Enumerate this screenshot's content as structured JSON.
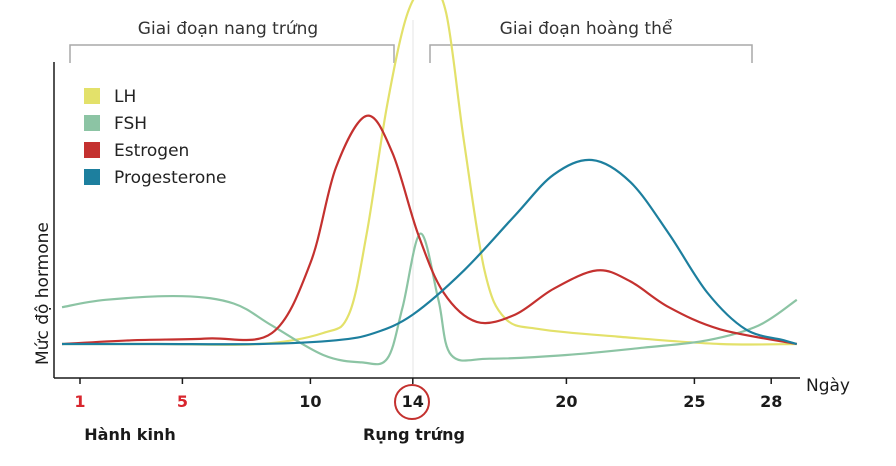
{
  "chart_data": {
    "type": "line",
    "xlabel": "Ngày",
    "ylabel": "Mức độ hormone",
    "xlim": [
      0,
      28
    ],
    "x_ticks": [
      {
        "value": 1,
        "label": "1",
        "color": "#d8262e"
      },
      {
        "value": 5,
        "label": "5",
        "color": "#d8262e"
      },
      {
        "value": 10,
        "label": "10",
        "color": "#1a1a1a"
      },
      {
        "value": 14,
        "label": "14",
        "color": "#1a1a1a",
        "circled": true
      },
      {
        "value": 20,
        "label": "20",
        "color": "#1a1a1a"
      },
      {
        "value": 25,
        "label": "25",
        "color": "#1a1a1a"
      },
      {
        "value": 28,
        "label": "28",
        "color": "#1a1a1a"
      }
    ],
    "phases": [
      {
        "label": "Giai đoạn nang trứng",
        "from_day": 0.5,
        "to_day": 13.7
      },
      {
        "label": "Giai đoạn hoàng thể",
        "from_day": 14.8,
        "to_day": 27.5
      }
    ],
    "annotations": [
      {
        "label": "Hành kinh",
        "day": 3,
        "color": "#1a1a1a"
      },
      {
        "label": "Rụng trứng",
        "day": 14,
        "color": "#1a1a1a"
      }
    ],
    "legend_position": "top-left",
    "series": [
      {
        "name": "LH",
        "color": "#e3e16a",
        "points": [
          [
            -1.5,
            0.0
          ],
          [
            4,
            0.0
          ],
          [
            8,
            0.0
          ],
          [
            10.5,
            0.03
          ],
          [
            11.5,
            0.08
          ],
          [
            12.2,
            0.3
          ],
          [
            13,
            0.65
          ],
          [
            13.8,
            0.9
          ],
          [
            14.6,
            0.97
          ],
          [
            15.3,
            0.9
          ],
          [
            16,
            0.55
          ],
          [
            16.8,
            0.2
          ],
          [
            17.6,
            0.07
          ],
          [
            19,
            0.04
          ],
          [
            22,
            0.02
          ],
          [
            26,
            0.0
          ],
          [
            29,
            0.0
          ]
        ]
      },
      {
        "name": "FSH",
        "color": "#8cc4a4",
        "points": [
          [
            -1.5,
            0.1
          ],
          [
            2,
            0.12
          ],
          [
            5,
            0.13
          ],
          [
            7,
            0.11
          ],
          [
            8.5,
            0.05
          ],
          [
            10.5,
            -0.03
          ],
          [
            12,
            -0.05
          ],
          [
            13,
            -0.04
          ],
          [
            13.6,
            0.1
          ],
          [
            14.3,
            0.3
          ],
          [
            15,
            0.12
          ],
          [
            15.5,
            -0.03
          ],
          [
            17,
            -0.04
          ],
          [
            20,
            -0.03
          ],
          [
            23,
            -0.01
          ],
          [
            25.5,
            0.01
          ],
          [
            27.5,
            0.05
          ],
          [
            29,
            0.12
          ]
        ]
      },
      {
        "name": "Estrogen",
        "color": "#c4312f",
        "points": [
          [
            -1.5,
            0.0
          ],
          [
            3,
            0.01
          ],
          [
            6,
            0.015
          ],
          [
            8.5,
            0.03
          ],
          [
            10,
            0.22
          ],
          [
            11,
            0.48
          ],
          [
            12.2,
            0.62
          ],
          [
            13.2,
            0.52
          ],
          [
            14.2,
            0.3
          ],
          [
            15.2,
            0.14
          ],
          [
            16.5,
            0.06
          ],
          [
            18,
            0.08
          ],
          [
            19.5,
            0.15
          ],
          [
            21.2,
            0.2
          ],
          [
            22.5,
            0.17
          ],
          [
            24,
            0.1
          ],
          [
            26,
            0.04
          ],
          [
            29,
            0.0
          ]
        ]
      },
      {
        "name": "Progesterone",
        "color": "#1d7f9e",
        "points": [
          [
            -1.5,
            0.0
          ],
          [
            4,
            0.0
          ],
          [
            8,
            0.0
          ],
          [
            11,
            0.01
          ],
          [
            12.5,
            0.03
          ],
          [
            14,
            0.08
          ],
          [
            16,
            0.2
          ],
          [
            18,
            0.35
          ],
          [
            19.5,
            0.46
          ],
          [
            21,
            0.5
          ],
          [
            22.5,
            0.44
          ],
          [
            24,
            0.3
          ],
          [
            25.5,
            0.14
          ],
          [
            27,
            0.04
          ],
          [
            28.5,
            0.01
          ],
          [
            29,
            0.0
          ]
        ]
      }
    ]
  }
}
